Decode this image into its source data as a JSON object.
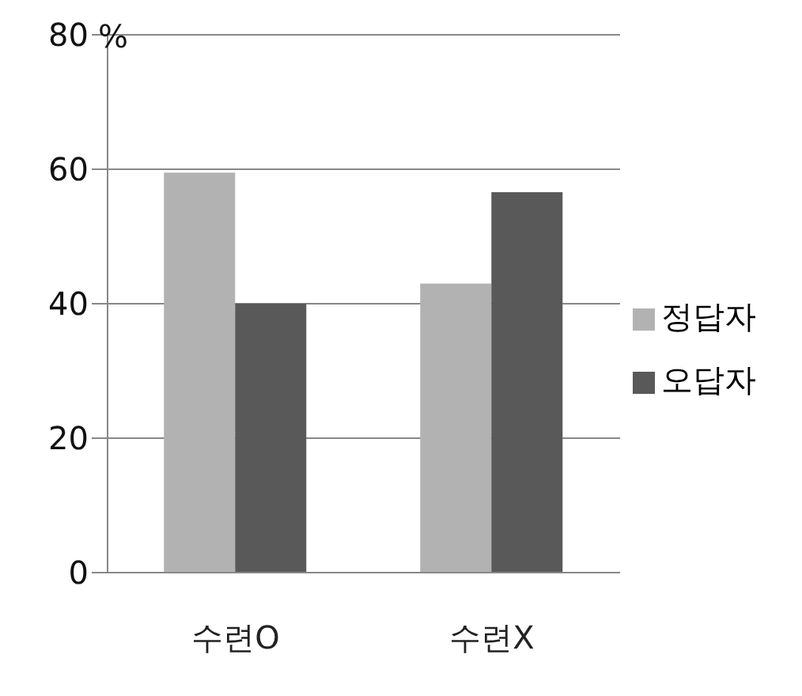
{
  "chart_data": {
    "type": "bar",
    "ylabel": "%",
    "categories": [
      "수련O",
      "수련X"
    ],
    "series": [
      {
        "name": "정답자",
        "color": "#b2b2b2",
        "values": [
          59.5,
          43
        ]
      },
      {
        "name": "오답자",
        "color": "#595959",
        "values": [
          40,
          56.6
        ]
      }
    ],
    "ylim": [
      0,
      80
    ],
    "yticks": [
      0,
      20,
      40,
      60,
      80
    ],
    "grid": "y",
    "legend": "right"
  }
}
